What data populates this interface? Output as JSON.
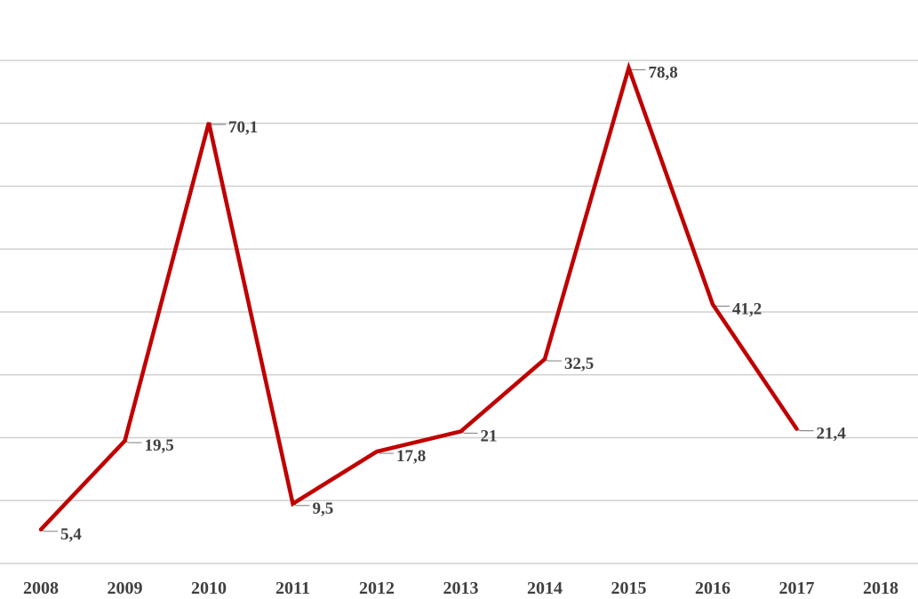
{
  "chart_data": {
    "type": "line",
    "x": [
      "2008",
      "2009",
      "2010",
      "2011",
      "2012",
      "2013",
      "2014",
      "2015",
      "2016",
      "2017",
      "2018"
    ],
    "series": [
      {
        "values": [
          5.4,
          19.5,
          70.1,
          9.5,
          17.8,
          21,
          32.5,
          78.8,
          41.2,
          21.4,
          null
        ],
        "labels": [
          "5,4",
          "19,5",
          "70,1",
          "9,5",
          "17,8",
          "21",
          "32,5",
          "78,8",
          "41,2",
          "21,4",
          null
        ],
        "color": "#c00000"
      }
    ],
    "ylim": [
      0,
      80
    ],
    "gridlines": true,
    "legend": "none"
  }
}
